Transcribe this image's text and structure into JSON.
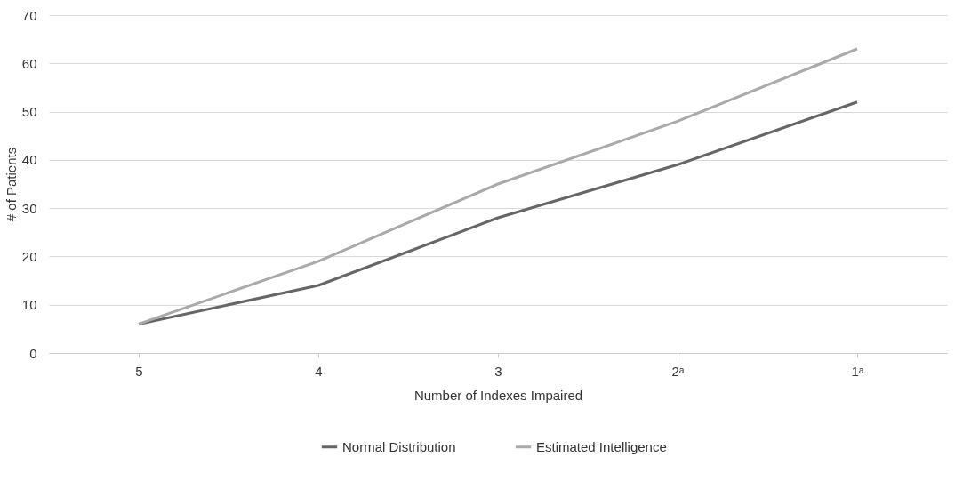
{
  "chart_data": {
    "type": "line",
    "xlabel": "Number of Indexes Impaired",
    "ylabel": "# of Patients",
    "categories": [
      "5",
      "4",
      "3",
      "2ᵃ",
      "1ᵃ"
    ],
    "series": [
      {
        "name": "Normal Distribution",
        "color": "#666666",
        "values": [
          6,
          14,
          28,
          39,
          52
        ]
      },
      {
        "name": "Estimated Intelligence",
        "color": "#aaaaaa",
        "values": [
          6,
          19,
          35,
          48,
          63
        ]
      }
    ],
    "ylim": [
      0,
      70
    ],
    "yticks": [
      0,
      10,
      20,
      30,
      40,
      50,
      60,
      70
    ],
    "grid": "y",
    "legend": "bottom",
    "marker": "none",
    "line_style": "solid"
  }
}
